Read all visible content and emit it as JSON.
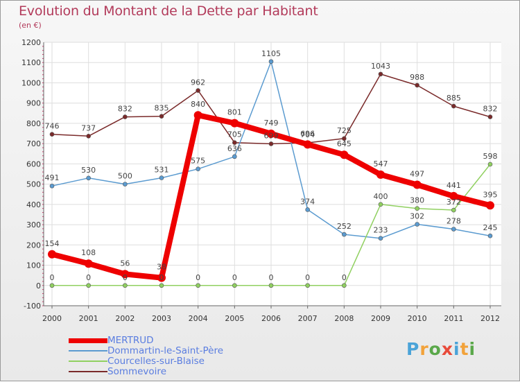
{
  "title": "Evolution du Montant de la Dette par Habitant",
  "subtitle": "(en €)",
  "logo": {
    "letters": [
      "P",
      "r",
      "o",
      "x",
      "i",
      "t",
      "i"
    ],
    "colors": [
      "#4aa3d8",
      "#f2a23a",
      "#5aa84a",
      "#e84a3a",
      "#4aa3d8",
      "#f2a23a",
      "#5aa84a"
    ]
  },
  "chart_data": {
    "type": "line",
    "x": [
      "2000",
      "2001",
      "2002",
      "2003",
      "2004",
      "2005",
      "2006",
      "2007",
      "2008",
      "2009",
      "2010",
      "2011",
      "2012"
    ],
    "ylim": [
      -100,
      1200
    ],
    "yticks": [
      -100,
      0,
      100,
      200,
      300,
      400,
      500,
      600,
      700,
      800,
      900,
      1000,
      1100,
      1200
    ],
    "grid": true,
    "legend_position": "bottom-left",
    "series": [
      {
        "name": "MERTRUD",
        "color": "#ee0000",
        "values": [
          154,
          108,
          56,
          38,
          840,
          801,
          749,
          696,
          645,
          547,
          497,
          441,
          395
        ]
      },
      {
        "name": "Dommartin-le-Saint-Père",
        "color": "#5b9bd0",
        "values": [
          491,
          530,
          500,
          531,
          575,
          636,
          1105,
          374,
          252,
          233,
          302,
          278,
          245
        ]
      },
      {
        "name": "Courcelles-sur-Blaise",
        "color": "#90d060",
        "values": [
          0,
          0,
          0,
          0,
          0,
          0,
          0,
          0,
          0,
          400,
          380,
          372,
          598
        ]
      },
      {
        "name": "Sommevoire",
        "color": "#7a2a2a",
        "values": [
          746,
          737,
          832,
          835,
          962,
          705,
          699,
          704,
          725,
          1043,
          988,
          885,
          832
        ]
      }
    ]
  }
}
